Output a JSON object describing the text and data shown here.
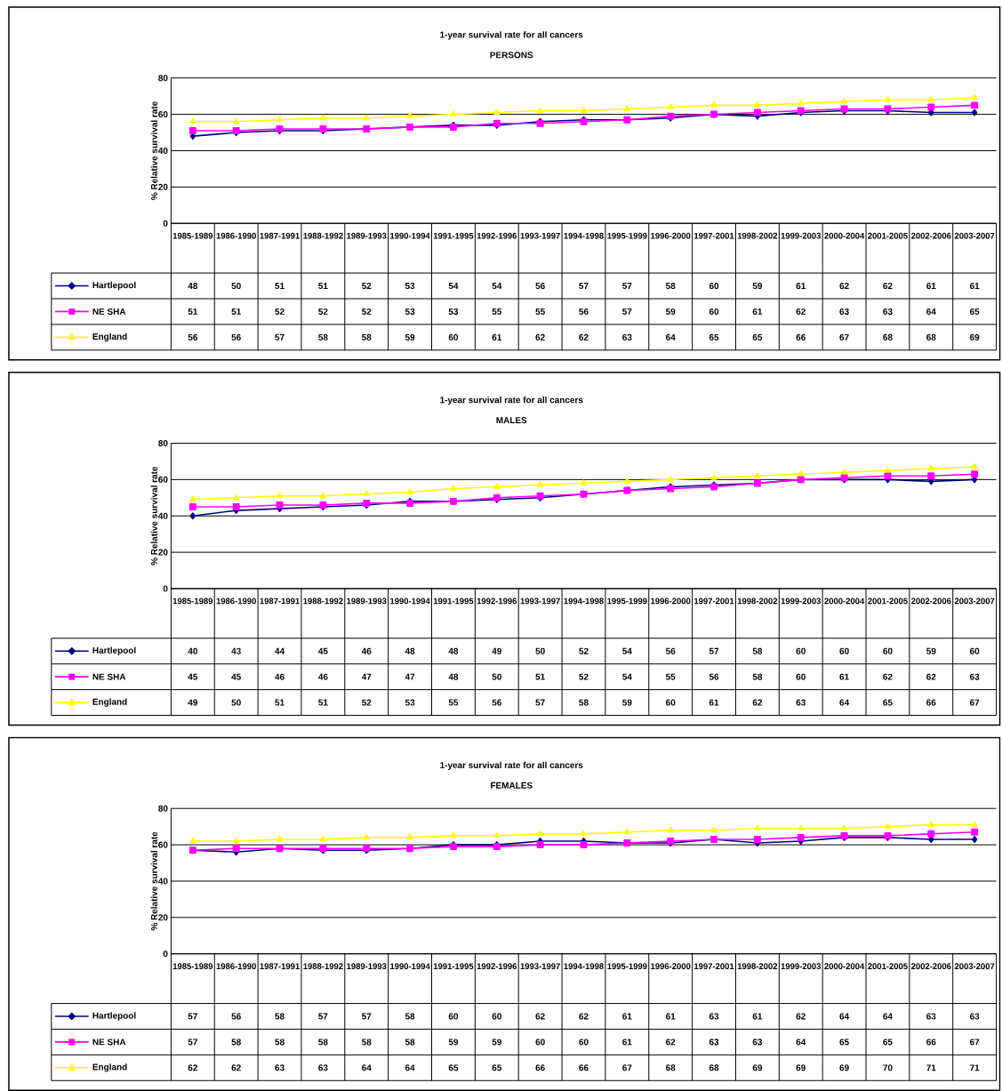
{
  "chart_data": [
    {
      "type": "line",
      "title": "1-year survival rate for all cancers",
      "subtitle": "PERSONS",
      "ylabel": "% Relative survival rate",
      "categories": [
        "1985-1989",
        "1986-1990",
        "1987-1991",
        "1988-1992",
        "1989-1993",
        "1990-1994",
        "1991-1995",
        "1992-1996",
        "1993-1997",
        "1994-1998",
        "1995-1999",
        "1996-2000",
        "1997-2001",
        "1998-2002",
        "1999-2003",
        "2000-2004",
        "2001-2005",
        "2002-2006",
        "2003-2007"
      ],
      "series": [
        {
          "name": "Hartlepool",
          "color": "#000080",
          "marker": "diamond",
          "values": [
            48,
            50,
            51,
            51,
            52,
            53,
            54,
            54,
            56,
            57,
            57,
            58,
            60,
            59,
            61,
            62,
            62,
            61,
            61
          ]
        },
        {
          "name": "NE SHA",
          "color": "#ff00ff",
          "marker": "square",
          "values": [
            51,
            51,
            52,
            52,
            52,
            53,
            53,
            55,
            55,
            56,
            57,
            59,
            60,
            61,
            62,
            63,
            63,
            64,
            65
          ]
        },
        {
          "name": "England",
          "color": "#ffff00",
          "marker": "triangle",
          "values": [
            56,
            56,
            57,
            58,
            58,
            59,
            60,
            61,
            62,
            62,
            63,
            64,
            65,
            65,
            66,
            67,
            68,
            68,
            69
          ]
        }
      ],
      "ylim": [
        0,
        80
      ],
      "yticks": [
        0,
        20,
        40,
        60,
        80
      ],
      "grid": "y",
      "legend": "bottom",
      "data_labels": true,
      "line_style": "solid"
    },
    {
      "type": "line",
      "title": "1-year survival rate for all cancers",
      "subtitle": "MALES",
      "ylabel": "% Relative survival rate",
      "categories": [
        "1985-1989",
        "1986-1990",
        "1987-1991",
        "1988-1992",
        "1989-1993",
        "1990-1994",
        "1991-1995",
        "1992-1996",
        "1993-1997",
        "1994-1998",
        "1995-1999",
        "1996-2000",
        "1997-2001",
        "1998-2002",
        "1999-2003",
        "2000-2004",
        "2001-2005",
        "2002-2006",
        "2003-2007"
      ],
      "series": [
        {
          "name": "Hartlepool",
          "color": "#000080",
          "marker": "diamond",
          "values": [
            40,
            43,
            44,
            45,
            46,
            48,
            48,
            49,
            50,
            52,
            54,
            56,
            57,
            58,
            60,
            60,
            60,
            59,
            60
          ]
        },
        {
          "name": "NE SHA",
          "color": "#ff00ff",
          "marker": "square",
          "values": [
            45,
            45,
            46,
            46,
            47,
            47,
            48,
            50,
            51,
            52,
            54,
            55,
            56,
            58,
            60,
            61,
            62,
            62,
            63
          ]
        },
        {
          "name": "England",
          "color": "#ffff00",
          "marker": "triangle",
          "values": [
            49,
            50,
            51,
            51,
            52,
            53,
            55,
            56,
            57,
            58,
            59,
            60,
            61,
            62,
            63,
            64,
            65,
            66,
            67
          ]
        }
      ],
      "ylim": [
        0,
        80
      ],
      "yticks": [
        0,
        20,
        40,
        60,
        80
      ],
      "grid": "y",
      "legend": "bottom",
      "data_labels": true,
      "line_style": "solid"
    },
    {
      "type": "line",
      "title": "1-year survival rate for all cancers",
      "subtitle": "FEMALES",
      "ylabel": "% Relative survival rate",
      "categories": [
        "1985-1989",
        "1986-1990",
        "1987-1991",
        "1988-1992",
        "1989-1993",
        "1990-1994",
        "1991-1995",
        "1992-1996",
        "1993-1997",
        "1994-1998",
        "1995-1999",
        "1996-2000",
        "1997-2001",
        "1998-2002",
        "1999-2003",
        "2000-2004",
        "2001-2005",
        "2002-2006",
        "2003-2007"
      ],
      "series": [
        {
          "name": "Hartlepool",
          "color": "#000080",
          "marker": "diamond",
          "values": [
            57,
            56,
            58,
            57,
            57,
            58,
            60,
            60,
            62,
            62,
            61,
            61,
            63,
            61,
            62,
            64,
            64,
            63,
            63
          ]
        },
        {
          "name": "NE SHA",
          "color": "#ff00ff",
          "marker": "square",
          "values": [
            57,
            58,
            58,
            58,
            58,
            58,
            59,
            59,
            60,
            60,
            61,
            62,
            63,
            63,
            64,
            65,
            65,
            66,
            67
          ]
        },
        {
          "name": "England",
          "color": "#ffff00",
          "marker": "triangle",
          "values": [
            62,
            62,
            63,
            63,
            64,
            64,
            65,
            65,
            66,
            66,
            67,
            68,
            68,
            69,
            69,
            69,
            70,
            71,
            71
          ]
        }
      ],
      "ylim": [
        0,
        80
      ],
      "yticks": [
        0,
        20,
        40,
        60,
        80
      ],
      "grid": "y",
      "legend": "bottom",
      "data_labels": true,
      "line_style": "solid"
    }
  ]
}
